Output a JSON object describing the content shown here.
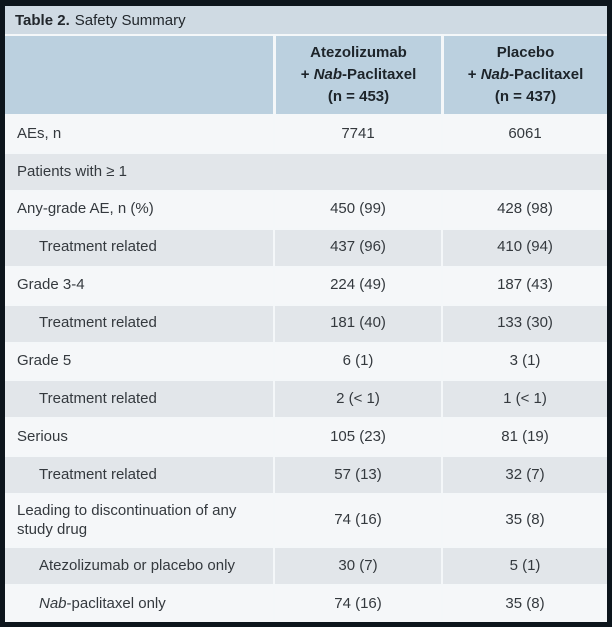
{
  "table": {
    "title": {
      "prefix": "Table 2.",
      "text": "Safety Summary"
    },
    "header": {
      "columns": [
        {
          "line1": "Atezolizumab",
          "line2_pre": "+ ",
          "line2_italic": "Nab",
          "line2_post": "-Paclitaxel",
          "line3": "(n = 453)"
        },
        {
          "line1": "Placebo",
          "line2_pre": "+ ",
          "line2_italic": "Nab",
          "line2_post": "-Paclitaxel",
          "line3": "(n = 437)"
        }
      ]
    },
    "rows": [
      {
        "label": "AEs, n",
        "col1": "7741",
        "col2": "6061"
      },
      {
        "label": "Patients with ≥ 1"
      },
      {
        "label": "Any-grade AE, n (%)",
        "col1": "450 (99)",
        "col2": "428 (98)"
      },
      {
        "label": "Treatment related",
        "col1": "437 (96)",
        "col2": "410 (94)"
      },
      {
        "label": "Grade 3-4",
        "col1": "224 (49)",
        "col2": "187 (43)"
      },
      {
        "label": "Treatment related",
        "col1": "181 (40)",
        "col2": "133 (30)"
      },
      {
        "label": "Grade 5",
        "col1": "6 (1)",
        "col2": "3 (1)"
      },
      {
        "label": "Treatment related",
        "col1": "2 (< 1)",
        "col2": "1 (< 1)"
      },
      {
        "label": "Serious",
        "col1": "105 (23)",
        "col2": "81 (19)"
      },
      {
        "label": "Treatment related",
        "col1": "57 (13)",
        "col2": "32 (7)"
      },
      {
        "label": "Leading to discontinuation of any study drug",
        "col1": "74 (16)",
        "col2": "35 (8)"
      },
      {
        "label": "Atezolizumab or placebo only",
        "col1": "30 (7)",
        "col2": "5 (1)"
      },
      {
        "label_italic": "Nab",
        "label": "-paclitaxel only",
        "col1": "74 (16)",
        "col2": "35 (8)"
      }
    ],
    "colors": {
      "outer_border": "#0d151c",
      "title_bg": "#cfdae3",
      "header_bg": "#bbd0df",
      "row_light": "#f5f7f9",
      "row_dark": "#e2e6ea",
      "body_text": "#34393e",
      "header_text": "#1d242a"
    }
  }
}
